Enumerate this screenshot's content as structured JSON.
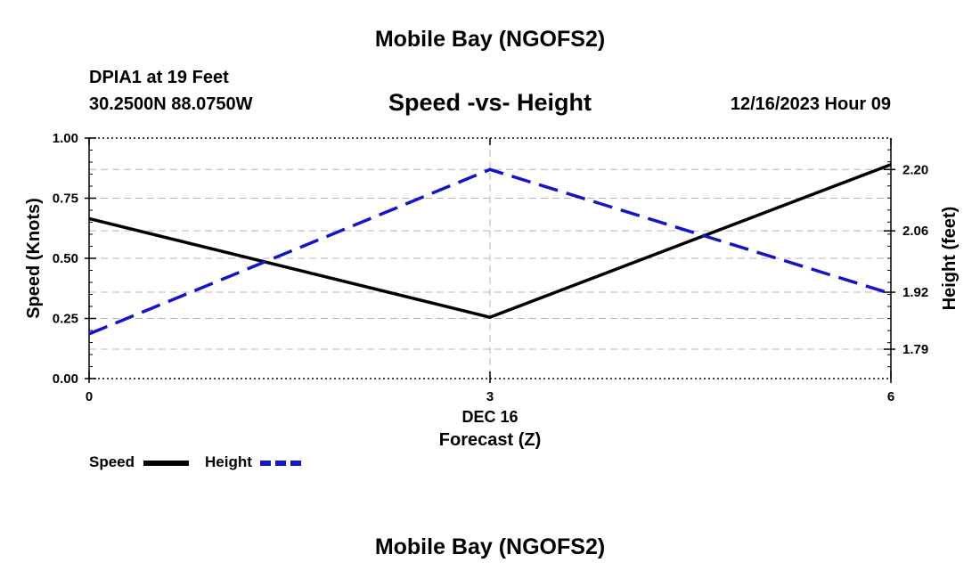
{
  "page": {
    "top_title": "Mobile Bay (NGOFS2)",
    "bottom_title": "Mobile Bay (NGOFS2)",
    "station": "DPIA1 at 19 Feet",
    "coordinates": "30.2500N  88.0750W",
    "datetime": "12/16/2023 Hour 09"
  },
  "chart_data": {
    "type": "line",
    "title": "Speed -vs- Height",
    "xlabel": "Forecast (Z)",
    "xlabel_date": "DEC 16",
    "ylabel_left": "Speed (Knots)",
    "ylabel_right": "Height (feet)",
    "x": [
      0,
      3,
      6
    ],
    "x_tick_labels": [
      "0",
      "3",
      "6"
    ],
    "xlim": [
      0,
      6
    ],
    "ylim_left": [
      0,
      1
    ],
    "left_ticks": [
      0.0,
      0.25,
      0.5,
      0.75,
      1.0
    ],
    "left_tick_labels": [
      "0.00",
      "0.25",
      "0.50",
      "0.75",
      "1.00"
    ],
    "ylim_right": [
      1.723,
      2.2717
    ],
    "right_ticks": [
      1.79,
      1.92,
      2.06,
      2.2
    ],
    "right_tick_labels": [
      "1.79",
      "1.92",
      "2.06",
      "2.20"
    ],
    "grid": true,
    "series": [
      {
        "name": "Speed",
        "axis": "left",
        "color": "#000000",
        "style": "solid",
        "values": [
          0.665,
          0.255,
          0.89
        ]
      },
      {
        "name": "Height",
        "axis": "right",
        "color": "#1414c8",
        "style": "dashed",
        "values": [
          1.8248,
          2.2,
          1.9168
        ]
      }
    ],
    "legend": {
      "speed_label": "Speed",
      "height_label": "Height",
      "placement": "bottom-left"
    }
  }
}
